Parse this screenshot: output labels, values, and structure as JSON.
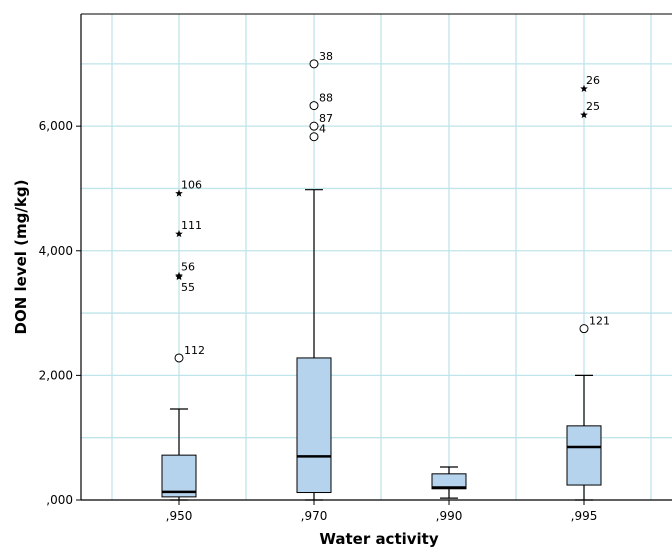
{
  "chart_data": {
    "type": "box",
    "xlabel": "Water activity",
    "ylabel": "DON level (mg/kg)",
    "ylim": [
      0,
      7800
    ],
    "y_ticks": [
      {
        "value": 0,
        "label": ",000"
      },
      {
        "value": 2000,
        "label": "2,000"
      },
      {
        "value": 4000,
        "label": "4,000"
      },
      {
        "value": 6000,
        "label": "6,000"
      }
    ],
    "grid": true,
    "categories": [
      ",950",
      ",970",
      ",990",
      ",995"
    ],
    "boxes": [
      {
        "category": ",950",
        "whisker_low": 0,
        "q1": 50,
        "median": 130,
        "q3": 720,
        "whisker_high": 1460,
        "outliers": [
          {
            "value": 2280,
            "label": "112",
            "marker": "circle"
          }
        ],
        "extremes": [
          {
            "value": 3580,
            "label": "55"
          },
          {
            "value": 3600,
            "label": "56"
          },
          {
            "value": 4270,
            "label": "111"
          },
          {
            "value": 4920,
            "label": "106"
          }
        ]
      },
      {
        "category": ",970",
        "whisker_low": 0,
        "q1": 120,
        "median": 700,
        "q3": 2280,
        "whisker_high": 4980,
        "outliers": [
          {
            "value": 5830,
            "label": "4",
            "marker": "circle"
          },
          {
            "value": 6000,
            "label": "87",
            "marker": "circle"
          },
          {
            "value": 6330,
            "label": "88",
            "marker": "circle"
          },
          {
            "value": 7000,
            "label": "38",
            "marker": "circle"
          }
        ],
        "extremes": []
      },
      {
        "category": ",990",
        "whisker_low": 30,
        "q1": 180,
        "median": 200,
        "q3": 420,
        "whisker_high": 530,
        "outliers": [],
        "extremes": []
      },
      {
        "category": ",995",
        "whisker_low": 0,
        "q1": 240,
        "median": 850,
        "q3": 1190,
        "whisker_high": 2000,
        "outliers": [
          {
            "value": 2750,
            "label": "121",
            "marker": "circle"
          }
        ],
        "extremes": [
          {
            "value": 6180,
            "label": "25"
          },
          {
            "value": 6600,
            "label": "26"
          }
        ]
      }
    ],
    "colors": {
      "box_fill": "#b6d3ee",
      "gridline": "#bfe4ea",
      "axis": "#000000"
    }
  }
}
